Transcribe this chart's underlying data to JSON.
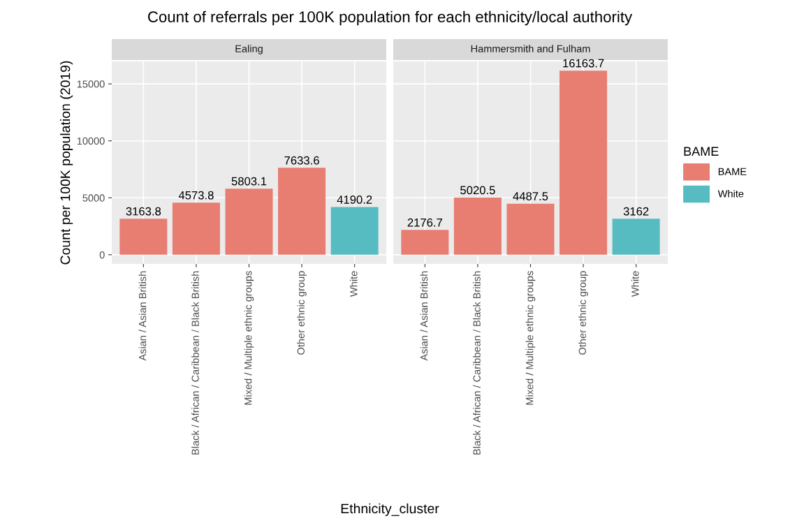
{
  "chart_data": [
    {
      "type": "bar",
      "title": "Count of referrals per 100K population for each ethnicity/local authority",
      "subtitle": "Ealing",
      "ylabel": "Count per 100K population (2019)",
      "xlabel": "Ethnicity_cluster",
      "categories": [
        "Asian / Asian British",
        "Black / African / Caribbean / Black British",
        "Mixed / Multiple ethnic groups",
        "Other ethnic group",
        "White"
      ],
      "series": [
        {
          "name": "BAME",
          "color": "#e87d72",
          "values": [
            3163.8,
            4573.8,
            5803.1,
            7633.6,
            null
          ]
        },
        {
          "name": "White",
          "color": "#56bcc2",
          "values": [
            null,
            null,
            null,
            null,
            4190.2
          ]
        }
      ],
      "ylim": [
        -808,
        16972
      ],
      "yticks": [
        0,
        5000,
        10000,
        15000
      ],
      "grid": true,
      "data_labels": true,
      "legend": "right",
      "legend_title": "BAME"
    },
    {
      "type": "bar",
      "subtitle": "Hammersmith and Fulham",
      "categories": [
        "Asian / Asian British",
        "Black / African / Caribbean / Black British",
        "Mixed / Multiple ethnic groups",
        "Other ethnic group",
        "White"
      ],
      "series": [
        {
          "color": "#e87d72",
          "values": [
            2176.7,
            5020.5,
            4487.5,
            16163.7,
            null
          ]
        },
        {
          "color": "#56bcc2",
          "values": [
            null,
            null,
            null,
            null,
            3162
          ]
        }
      ],
      "ylim": [
        -808,
        16972
      ],
      "yticks": [
        0,
        5000,
        10000,
        15000
      ],
      "grid": true,
      "data_labels": true,
      "tick_labels": "x"
    }
  ]
}
